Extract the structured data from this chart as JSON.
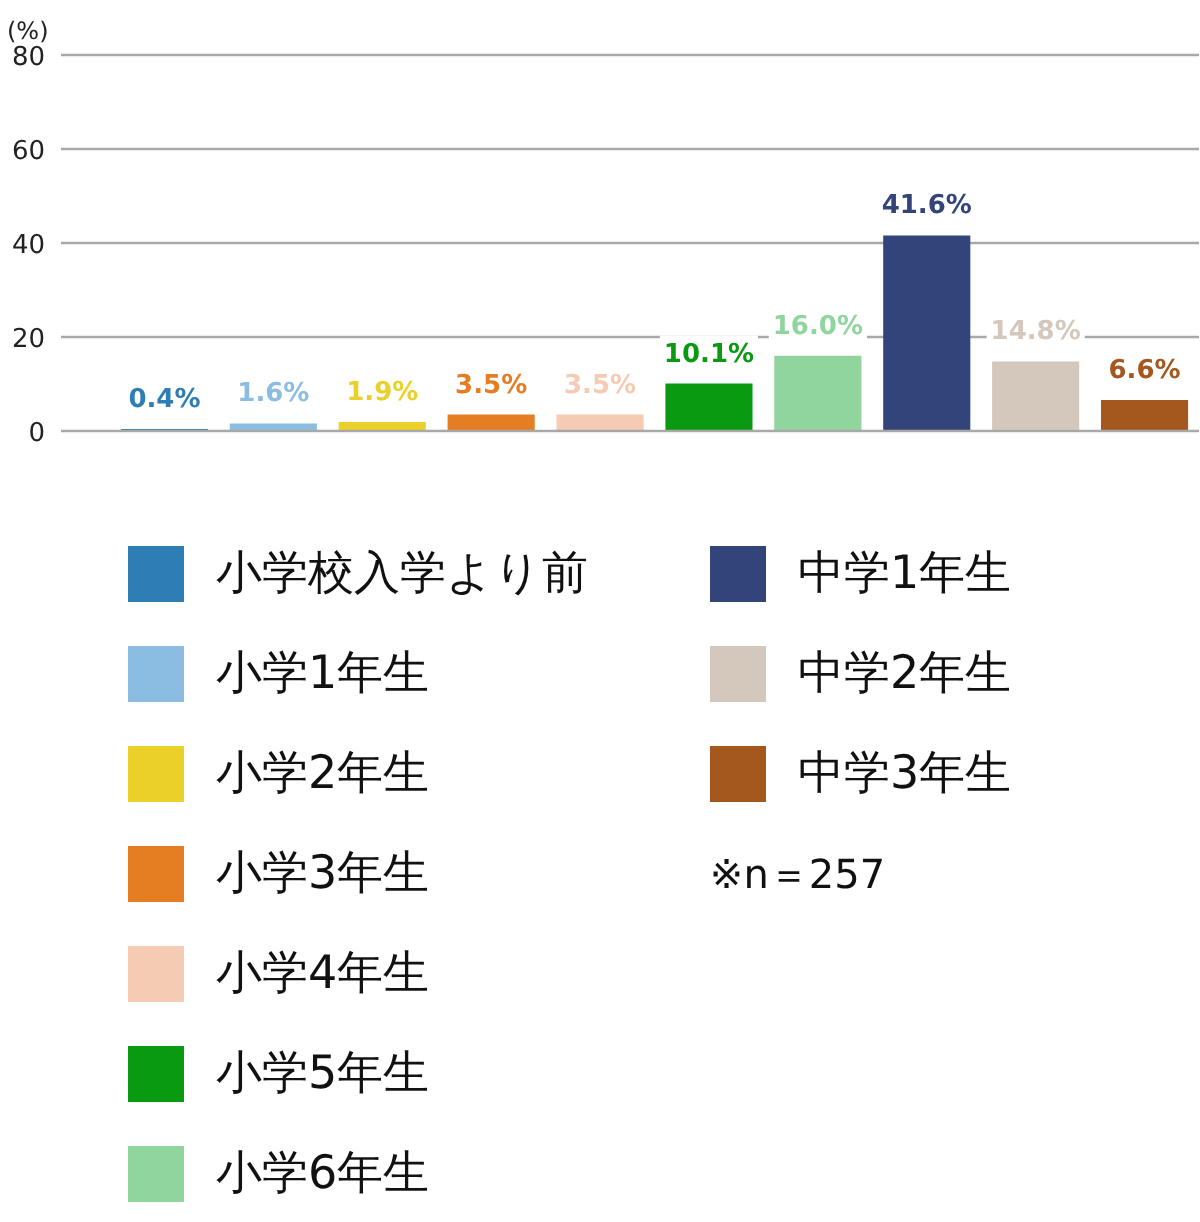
{
  "chart_data": {
    "type": "bar",
    "ylabel": "(%)",
    "categories": [
      null,
      null,
      null,
      null,
      null,
      null,
      null,
      null,
      null,
      null
    ],
    "ylim": [
      0,
      80
    ],
    "yticks": [
      0,
      20,
      40,
      60,
      80
    ],
    "grid": "y",
    "legend": "bottom",
    "tick_labels": "y",
    "series": [
      {
        "name": "小学校入学より前",
        "color": "#2e7eb5",
        "values": [
          0.4,
          null,
          null,
          null,
          null,
          null,
          null,
          null,
          null,
          null
        ],
        "value_labels": [
          "0.4%",
          null,
          null,
          null,
          null,
          null,
          null,
          null,
          null,
          null
        ]
      },
      {
        "name": "小学1年生",
        "color": "#8bbde3",
        "values": [
          null,
          1.6,
          null,
          null,
          null,
          null,
          null,
          null,
          null,
          null
        ],
        "value_labels": [
          null,
          "1.6%",
          null,
          null,
          null,
          null,
          null,
          null,
          null,
          null
        ]
      },
      {
        "name": "小学2年生",
        "color": "#ecd02a",
        "values": [
          null,
          null,
          1.9,
          null,
          null,
          null,
          null,
          null,
          null,
          null
        ],
        "value_labels": [
          null,
          null,
          "1.9%",
          null,
          null,
          null,
          null,
          null,
          null,
          null
        ]
      },
      {
        "name": "小学3年生",
        "color": "#e57e22",
        "values": [
          null,
          null,
          null,
          3.5,
          null,
          null,
          null,
          null,
          null,
          null
        ],
        "value_labels": [
          null,
          null,
          null,
          "3.5%",
          null,
          null,
          null,
          null,
          null,
          null
        ]
      },
      {
        "name": "小学4年生",
        "color": "#f6cbb4",
        "values": [
          null,
          null,
          null,
          null,
          3.5,
          null,
          null,
          null,
          null,
          null
        ],
        "value_labels": [
          null,
          null,
          null,
          null,
          "3.5%",
          null,
          null,
          null,
          null,
          null
        ]
      },
      {
        "name": "小学5年生",
        "color": "#0a9a12",
        "values": [
          null,
          null,
          null,
          null,
          null,
          10.1,
          null,
          null,
          null,
          null
        ],
        "value_labels": [
          null,
          null,
          null,
          null,
          null,
          "10.1%",
          null,
          null,
          null,
          null
        ]
      },
      {
        "name": "小学6年生",
        "color": "#90d49e",
        "values": [
          null,
          null,
          null,
          null,
          null,
          null,
          16.0,
          null,
          null,
          null
        ],
        "value_labels": [
          null,
          null,
          null,
          null,
          null,
          null,
          "16.0%",
          null,
          null,
          null
        ]
      },
      {
        "name": "中学1年生",
        "color": "#33447a",
        "values": [
          null,
          null,
          null,
          null,
          null,
          null,
          null,
          41.6,
          null,
          null
        ],
        "value_labels": [
          null,
          null,
          null,
          null,
          null,
          null,
          null,
          "41.6%",
          null,
          null
        ]
      },
      {
        "name": "中学2年生",
        "color": "#d4c8bd",
        "values": [
          null,
          null,
          null,
          null,
          null,
          null,
          null,
          null,
          14.8,
          null
        ],
        "value_labels": [
          null,
          null,
          null,
          null,
          null,
          null,
          null,
          null,
          "14.8%",
          null
        ]
      },
      {
        "name": "中学3年生",
        "color": "#a5581e",
        "values": [
          null,
          null,
          null,
          null,
          null,
          null,
          null,
          null,
          null,
          6.6
        ],
        "value_labels": [
          null,
          null,
          null,
          null,
          null,
          null,
          null,
          null,
          null,
          "6.6%"
        ]
      }
    ],
    "annotations": [
      "※n＝257"
    ]
  }
}
